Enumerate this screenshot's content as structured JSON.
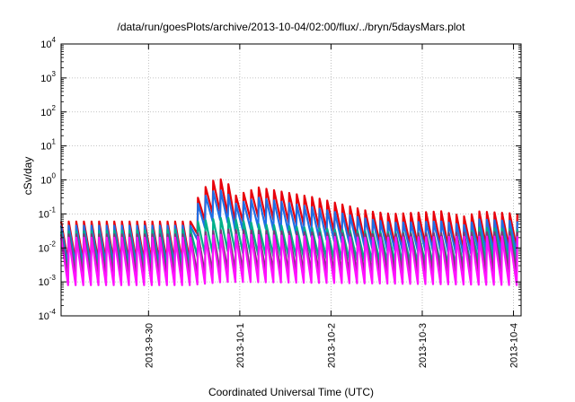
{
  "chart_data": {
    "type": "line",
    "title": "/data/run/goesPlots/archive/2013-10-04/02:00/flux/../bryn/5daysMars.plot",
    "xlabel": "Coordinated Universal Time (UTC)",
    "ylabel": "cSv/day",
    "x_scale": "time",
    "y_scale": "log",
    "xlim": [
      "2013-09-29T01:00",
      "2013-10-04T02:00"
    ],
    "ylim": [
      0.0001,
      10000
    ],
    "grid": true,
    "x_ticks": [
      "2013-9-30",
      "2013-10-1",
      "2013-10-2",
      "2013-10-3",
      "2013-10-4"
    ],
    "y_ticks": [
      {
        "value": 0.0001,
        "base": "10",
        "exp": "-4"
      },
      {
        "value": 0.001,
        "base": "10",
        "exp": "-3"
      },
      {
        "value": 0.01,
        "base": "10",
        "exp": "-2"
      },
      {
        "value": 0.1,
        "base": "10",
        "exp": "-1"
      },
      {
        "value": 1,
        "base": "10",
        "exp": "0"
      },
      {
        "value": 10,
        "base": "10",
        "exp": "1"
      },
      {
        "value": 100,
        "base": "10",
        "exp": "2"
      },
      {
        "value": 1000,
        "base": "10",
        "exp": "3"
      },
      {
        "value": 10000,
        "base": "10",
        "exp": "4"
      }
    ],
    "sawtooth_period_hours": 2,
    "series": [
      {
        "color": "#e8000b",
        "envelope": [
          [
            "2013-09-29T01:00",
            0.06,
            0.004
          ],
          [
            "2013-09-30T11:00",
            0.06,
            0.004
          ],
          [
            "2013-09-30T13:00",
            0.3,
            0.03
          ],
          [
            "2013-09-30T16:00",
            0.9,
            0.1
          ],
          [
            "2013-09-30T20:00",
            1.1,
            0.12
          ],
          [
            "2013-09-30T23:00",
            0.35,
            0.05
          ],
          [
            "2013-10-01T05:00",
            0.6,
            0.08
          ],
          [
            "2013-10-01T20:00",
            0.3,
            0.04
          ],
          [
            "2013-10-02T10:00",
            0.12,
            0.015
          ],
          [
            "2013-10-02T16:00",
            0.1,
            0.012
          ],
          [
            "2013-10-03T05:00",
            0.12,
            0.012
          ],
          [
            "2013-10-03T12:00",
            0.08,
            0.008
          ],
          [
            "2013-10-03T14:00",
            0.12,
            0.012
          ],
          [
            "2013-10-04T02:00",
            0.1,
            0.01
          ]
        ]
      },
      {
        "color": "#1f6fe5",
        "envelope": [
          [
            "2013-09-29T01:00",
            0.045,
            0.003
          ],
          [
            "2013-09-30T11:00",
            0.045,
            0.003
          ],
          [
            "2013-09-30T13:00",
            0.2,
            0.02
          ],
          [
            "2013-09-30T16:00",
            0.45,
            0.06
          ],
          [
            "2013-09-30T20:00",
            0.5,
            0.07
          ],
          [
            "2013-09-30T23:00",
            0.2,
            0.03
          ],
          [
            "2013-10-01T05:00",
            0.3,
            0.04
          ],
          [
            "2013-10-01T20:00",
            0.15,
            0.02
          ],
          [
            "2013-10-02T10:00",
            0.07,
            0.01
          ],
          [
            "2013-10-02T16:00",
            0.055,
            0.008
          ],
          [
            "2013-10-03T05:00",
            0.06,
            0.008
          ],
          [
            "2013-10-03T12:00",
            0.045,
            0.006
          ],
          [
            "2013-10-03T14:00",
            0.07,
            0.008
          ],
          [
            "2013-10-04T02:00",
            0.06,
            0.007
          ]
        ]
      },
      {
        "color": "#00b08a",
        "envelope": [
          [
            "2013-09-29T01:00",
            0.03,
            0.002
          ],
          [
            "2013-09-30T11:00",
            0.035,
            0.002
          ],
          [
            "2013-09-30T13:00",
            0.06,
            0.006
          ],
          [
            "2013-09-30T20:00",
            0.08,
            0.008
          ],
          [
            "2013-10-01T05:00",
            0.05,
            0.006
          ],
          [
            "2013-10-02T10:00",
            0.03,
            0.004
          ],
          [
            "2013-10-03T12:00",
            0.025,
            0.003
          ],
          [
            "2013-10-03T14:00",
            0.04,
            0.004
          ],
          [
            "2013-10-04T02:00",
            0.035,
            0.004
          ]
        ]
      },
      {
        "color": "#7a3a7a",
        "envelope": [
          [
            "2013-09-29T01:00",
            0.025,
            0.0015
          ],
          [
            "2013-09-30T11:00",
            0.025,
            0.0015
          ],
          [
            "2013-09-30T20:00",
            0.035,
            0.002
          ],
          [
            "2013-10-02T10:00",
            0.025,
            0.0018
          ],
          [
            "2013-10-04T02:00",
            0.03,
            0.002
          ]
        ]
      },
      {
        "color": "#ff10ff",
        "envelope": [
          [
            "2013-09-29T01:00",
            0.02,
            0.0008
          ],
          [
            "2013-09-30T11:00",
            0.02,
            0.0008
          ],
          [
            "2013-09-30T20:00",
            0.025,
            0.001
          ],
          [
            "2013-10-02T10:00",
            0.02,
            0.0009
          ],
          [
            "2013-10-04T02:00",
            0.022,
            0.0008
          ]
        ]
      }
    ]
  }
}
